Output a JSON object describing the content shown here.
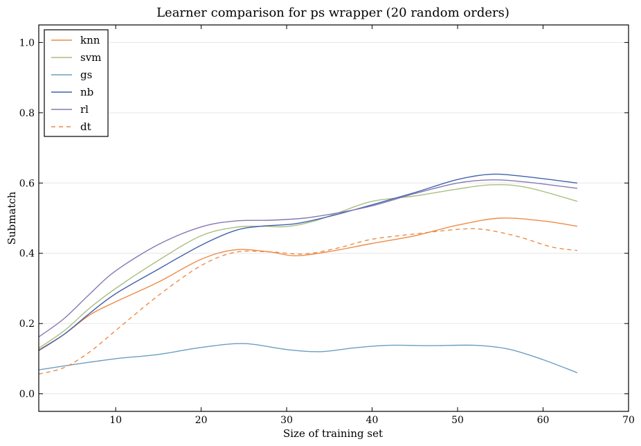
{
  "chart_data": {
    "type": "line",
    "title": "Learner comparison for ps wrapper (20 random orders)",
    "xlabel": "Size of training set",
    "ylabel": "Submatch",
    "xlim": [
      1,
      70
    ],
    "ylim": [
      -0.05,
      1.05
    ],
    "xticks": [
      10,
      20,
      30,
      40,
      50,
      60,
      70
    ],
    "yticks": [
      0.0,
      0.2,
      0.4,
      0.6,
      0.8,
      1.0
    ],
    "ytick_labels": [
      "0.0",
      "0.2",
      "0.4",
      "0.6",
      "0.8",
      "1.0"
    ],
    "grid": true,
    "legend": "top-left",
    "series": [
      {
        "name": "knn",
        "color": "#ee8a45",
        "dash": "solid",
        "points": [
          [
            1,
            0.125
          ],
          [
            4,
            0.17
          ],
          [
            7,
            0.225
          ],
          [
            10,
            0.262
          ],
          [
            15,
            0.318
          ],
          [
            20,
            0.383
          ],
          [
            24,
            0.41
          ],
          [
            28,
            0.404
          ],
          [
            31,
            0.393
          ],
          [
            35,
            0.405
          ],
          [
            40,
            0.428
          ],
          [
            45,
            0.45
          ],
          [
            50,
            0.48
          ],
          [
            55,
            0.5
          ],
          [
            60,
            0.492
          ],
          [
            64,
            0.477
          ]
        ]
      },
      {
        "name": "svm",
        "color": "#a9be7f",
        "dash": "solid",
        "points": [
          [
            1,
            0.13
          ],
          [
            4,
            0.18
          ],
          [
            7,
            0.245
          ],
          [
            10,
            0.3
          ],
          [
            15,
            0.38
          ],
          [
            20,
            0.45
          ],
          [
            24,
            0.474
          ],
          [
            27,
            0.477
          ],
          [
            30,
            0.476
          ],
          [
            33,
            0.49
          ],
          [
            36,
            0.515
          ],
          [
            40,
            0.548
          ],
          [
            45,
            0.563
          ],
          [
            50,
            0.583
          ],
          [
            54,
            0.595
          ],
          [
            58,
            0.588
          ],
          [
            64,
            0.548
          ]
        ]
      },
      {
        "name": "gs",
        "color": "#6a9ec0",
        "dash": "solid",
        "points": [
          [
            1,
            0.068
          ],
          [
            5,
            0.083
          ],
          [
            10,
            0.1
          ],
          [
            15,
            0.112
          ],
          [
            20,
            0.132
          ],
          [
            25,
            0.143
          ],
          [
            30,
            0.126
          ],
          [
            34,
            0.12
          ],
          [
            38,
            0.131
          ],
          [
            42,
            0.138
          ],
          [
            47,
            0.137
          ],
          [
            52,
            0.138
          ],
          [
            56,
            0.127
          ],
          [
            60,
            0.097
          ],
          [
            64,
            0.06
          ]
        ]
      },
      {
        "name": "nb",
        "color": "#4060ad",
        "dash": "solid",
        "points": [
          [
            1,
            0.123
          ],
          [
            4,
            0.17
          ],
          [
            7,
            0.23
          ],
          [
            10,
            0.285
          ],
          [
            15,
            0.355
          ],
          [
            20,
            0.423
          ],
          [
            24,
            0.465
          ],
          [
            27,
            0.477
          ],
          [
            31,
            0.484
          ],
          [
            35,
            0.505
          ],
          [
            40,
            0.538
          ],
          [
            45,
            0.573
          ],
          [
            50,
            0.61
          ],
          [
            54,
            0.625
          ],
          [
            58,
            0.618
          ],
          [
            64,
            0.6
          ]
        ]
      },
      {
        "name": "rl",
        "color": "#8378b3",
        "dash": "solid",
        "points": [
          [
            1,
            0.162
          ],
          [
            4,
            0.215
          ],
          [
            7,
            0.285
          ],
          [
            10,
            0.35
          ],
          [
            15,
            0.425
          ],
          [
            20,
            0.475
          ],
          [
            24,
            0.492
          ],
          [
            28,
            0.494
          ],
          [
            32,
            0.5
          ],
          [
            36,
            0.515
          ],
          [
            40,
            0.535
          ],
          [
            45,
            0.57
          ],
          [
            50,
            0.6
          ],
          [
            54,
            0.609
          ],
          [
            58,
            0.603
          ],
          [
            64,
            0.585
          ]
        ]
      },
      {
        "name": "dt",
        "color": "#ee8a45",
        "dash": "dashed",
        "points": [
          [
            1,
            0.056
          ],
          [
            4,
            0.075
          ],
          [
            7,
            0.12
          ],
          [
            10,
            0.18
          ],
          [
            15,
            0.28
          ],
          [
            20,
            0.365
          ],
          [
            24,
            0.403
          ],
          [
            28,
            0.404
          ],
          [
            32,
            0.398
          ],
          [
            36,
            0.415
          ],
          [
            40,
            0.44
          ],
          [
            45,
            0.455
          ],
          [
            50,
            0.468
          ],
          [
            53,
            0.468
          ],
          [
            57,
            0.448
          ],
          [
            61,
            0.418
          ],
          [
            64,
            0.408
          ]
        ]
      }
    ]
  }
}
